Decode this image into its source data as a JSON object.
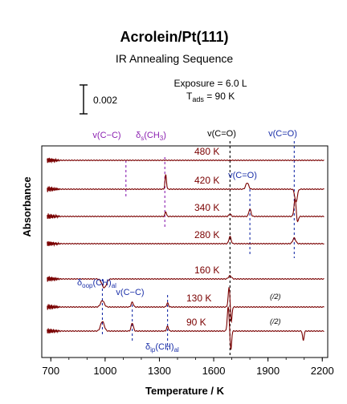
{
  "chart_data": {
    "type": "line",
    "title": "Acrolein/Pt(111)",
    "subtitle": "IR Annealing Sequence",
    "xlabel": "Temperature / K",
    "ylabel": "Absorbance",
    "xlim": [
      650,
      2230
    ],
    "x_ticks": [
      "700",
      "1000",
      "1300",
      "1600",
      "1900",
      "2200"
    ],
    "exposure_text": "Exposure = 6.0 L",
    "t_ads_main": "T",
    "t_ads_sub": "ads",
    "t_ads_value": " = 90 K",
    "scale_bar_label": "0.002",
    "half_scale_label": "(/2)",
    "colors": {
      "trace": "#7a0000",
      "marker_purple": "#8a1fb0",
      "marker_blue": "#1a2fa8",
      "marker_black": "#000000"
    },
    "series": [
      {
        "label": "480 K",
        "peaks": []
      },
      {
        "label": "420 K",
        "peaks": [
          [
            1335,
            18,
            4
          ],
          [
            1785,
            8,
            8
          ],
          [
            2055,
            -16,
            7
          ]
        ]
      },
      {
        "label": "340 K",
        "peaks": [
          [
            1335,
            6,
            4
          ],
          [
            1690,
            3,
            6
          ],
          [
            1800,
            9,
            6
          ],
          [
            2050,
            22,
            6
          ],
          [
            2062,
            -9,
            5
          ]
        ]
      },
      {
        "label": "280 K",
        "peaks": [
          [
            1690,
            9,
            6
          ],
          [
            2045,
            7,
            8
          ]
        ]
      },
      {
        "label": "160 K",
        "peaks": [
          [
            995,
            -11,
            12
          ],
          [
            1690,
            4,
            8
          ]
        ]
      },
      {
        "label": "130 K",
        "peaks": [
          [
            985,
            8,
            10
          ],
          [
            1150,
            6,
            6
          ],
          [
            1345,
            5,
            5
          ],
          [
            1685,
            24,
            5
          ],
          [
            1697,
            -20,
            4
          ]
        ]
      },
      {
        "label": "90 K",
        "peaks": [
          [
            985,
            12,
            10
          ],
          [
            1150,
            10,
            6
          ],
          [
            1345,
            6,
            5
          ],
          [
            1680,
            30,
            5
          ],
          [
            1695,
            -24,
            4
          ],
          [
            2095,
            -12,
            4
          ]
        ]
      }
    ],
    "markers": [
      {
        "label": "v(C−C)",
        "x": 1115,
        "color": "purple"
      },
      {
        "label": "δs(CH3)",
        "main": "δ",
        "sub": "s",
        "tail": "(CH",
        "sub2": "3",
        "tail2": ")",
        "x": 1330,
        "color": "purple"
      },
      {
        "label": "v(C=O)",
        "x": 1690,
        "color": "black"
      },
      {
        "label": "v(C=O)",
        "x": 1800,
        "color": "blue"
      },
      {
        "label": "v(C=O)",
        "x": 2045,
        "color": "blue"
      },
      {
        "label": "δoop(CH)al",
        "main": "δ",
        "sub": "oop",
        "tail": "(CH)",
        "sub2": "al",
        "tail2": "",
        "x": 985,
        "color": "blue"
      },
      {
        "label": "v(C−C)",
        "x": 1150,
        "color": "blue"
      },
      {
        "label": "δip(CH)al",
        "main": "δ",
        "sub": "ip",
        "tail": "(CH)",
        "sub2": "al",
        "tail2": "",
        "x": 1345,
        "color": "blue"
      }
    ]
  }
}
